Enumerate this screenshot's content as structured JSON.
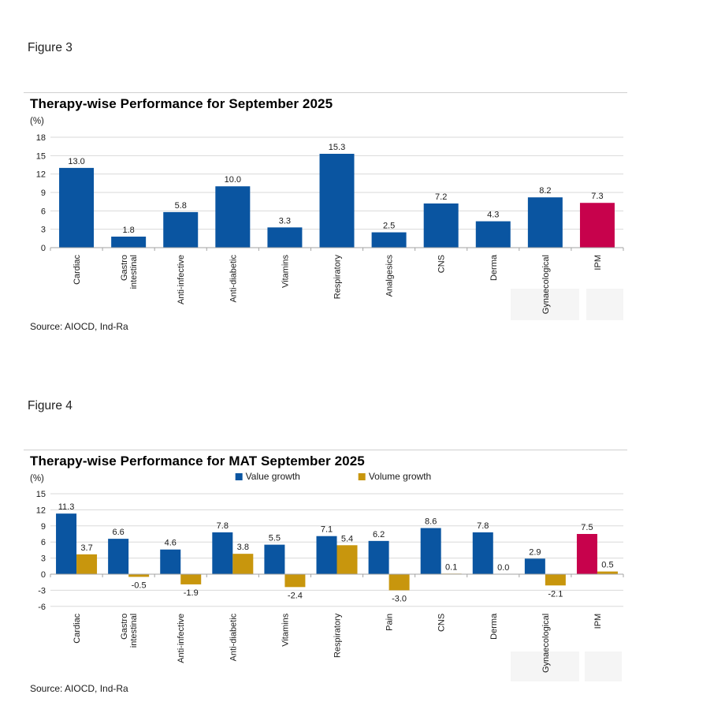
{
  "figure3_caption": "Figure 3",
  "figure4_caption": "Figure 4",
  "colors": {
    "bar_blue": "#0a55a1",
    "bar_crimson": "#c7024c",
    "bar_gold": "#c8960d",
    "gridline": "#d9d9d9",
    "axis": "#a3a3a3",
    "label_text": "#1a1a1a",
    "watermark": "#eeeeee"
  },
  "chart_data": [
    {
      "type": "bar",
      "title": "Therapy-wise Performance for September 2025",
      "unit_label": "(%)",
      "categories": [
        "Cardiac",
        "Gastro|intestinal",
        "Anti-infective",
        "Anti-diabetic",
        "Vitamins",
        "Respiratory",
        "Analgesics",
        "CNS",
        "Derma",
        "Gynaecological",
        "IPM"
      ],
      "values": [
        13.0,
        1.8,
        5.8,
        10.0,
        3.3,
        15.3,
        2.5,
        7.2,
        4.3,
        8.2,
        7.3
      ],
      "highlight_category": "IPM",
      "ylim": [
        0,
        18
      ],
      "ytick_step": 3,
      "grid": true,
      "legend_position": "none",
      "source": "Source: AIOCD, Ind-Ra"
    },
    {
      "type": "grouped-bar",
      "title": "Therapy-wise Performance for MAT September 2025",
      "unit_label": "(%)",
      "categories": [
        "Cardiac",
        "Gastro|intestinal",
        "Anti-infective",
        "Anti-diabetic",
        "Vitamins",
        "Respiratory",
        "Pain",
        "CNS",
        "Derma",
        "Gynaecological",
        "IPM"
      ],
      "series": [
        {
          "name": "Value growth",
          "values": [
            11.3,
            6.6,
            4.6,
            7.8,
            5.5,
            7.1,
            6.2,
            8.6,
            7.8,
            2.9,
            7.5
          ]
        },
        {
          "name": "Volume growth",
          "values": [
            3.7,
            -0.5,
            -1.9,
            3.8,
            -2.4,
            5.4,
            -3.0,
            0.1,
            0.0,
            -2.1,
            0.5
          ]
        }
      ],
      "highlight_category": "IPM",
      "ylim": [
        -6,
        15
      ],
      "ytick_step": 3,
      "grid": true,
      "legend_position": "top",
      "source": "Source: AIOCD, Ind-Ra"
    }
  ]
}
